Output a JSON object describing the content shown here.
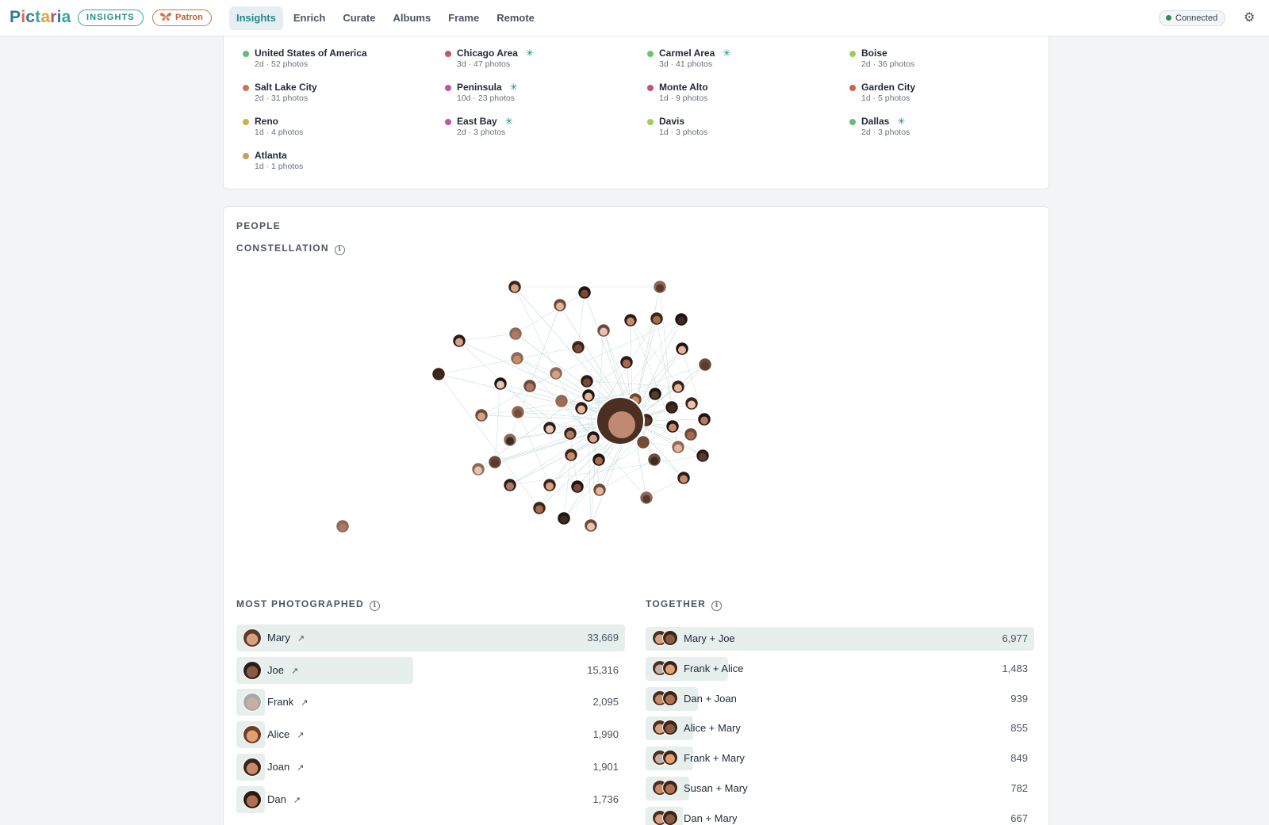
{
  "app": {
    "logo_text": "Pictaria",
    "mode_badge": "INSIGHTS",
    "patron_badge": "Patron",
    "nav": [
      "Insights",
      "Enrich",
      "Curate",
      "Albums",
      "Frame",
      "Remote"
    ],
    "active_nav": "Insights",
    "status": "Connected",
    "colors": {
      "accent": "#1f8a84",
      "patron": "#b8613a",
      "bar": "#e6efec"
    }
  },
  "places": [
    {
      "name": "United States of America",
      "meta": "2d · 52 photos",
      "color": "#5fbf6a",
      "starred": false
    },
    {
      "name": "Chicago Area",
      "meta": "3d · 47 photos",
      "color": "#c4565e",
      "starred": true
    },
    {
      "name": "Carmel Area",
      "meta": "3d · 41 photos",
      "color": "#6cc46b",
      "starred": true
    },
    {
      "name": "Boise",
      "meta": "2d · 36 photos",
      "color": "#9bcf5c",
      "starred": false
    },
    {
      "name": "Salt Lake City",
      "meta": "2d · 31 photos",
      "color": "#c97358",
      "starred": false
    },
    {
      "name": "Peninsula",
      "meta": "10d · 23 photos",
      "color": "#c0579e",
      "starred": true
    },
    {
      "name": "Monte Alto",
      "meta": "1d · 9 photos",
      "color": "#c4527a",
      "starred": false
    },
    {
      "name": "Garden City",
      "meta": "1d · 5 photos",
      "color": "#c9664a",
      "starred": false
    },
    {
      "name": "Reno",
      "meta": "1d · 4 photos",
      "color": "#c9b24a",
      "starred": false
    },
    {
      "name": "East Bay",
      "meta": "2d · 3 photos",
      "color": "#c055a8",
      "starred": true
    },
    {
      "name": "Davis",
      "meta": "1d · 3 photos",
      "color": "#9ccf5e",
      "starred": false
    },
    {
      "name": "Dallas",
      "meta": "2d · 3 photos",
      "color": "#62c270",
      "starred": true
    },
    {
      "name": "Atlanta",
      "meta": "1d · 1 photos",
      "color": "#c9a05a",
      "starred": false
    }
  ],
  "people": {
    "section_label": "PEOPLE",
    "constellation_label": "CONSTELLATION",
    "most_label": "MOST PHOTOGRAPHED",
    "together_label": "TOGETHER",
    "link_glyph": "↗",
    "most_photographed": [
      {
        "name": "Mary",
        "count": "33,669",
        "value": 33669
      },
      {
        "name": "Joe",
        "count": "15,316",
        "value": 15316
      },
      {
        "name": "Frank",
        "count": "2,095",
        "value": 2095
      },
      {
        "name": "Alice",
        "count": "1,990",
        "value": 1990
      },
      {
        "name": "Joan",
        "count": "1,901",
        "value": 1901
      },
      {
        "name": "Dan",
        "count": "1,736",
        "value": 1736
      }
    ],
    "together": [
      {
        "name": "Mary + Joe",
        "count": "6,977",
        "value": 6977
      },
      {
        "name": "Frank + Alice",
        "count": "1,483",
        "value": 1483
      },
      {
        "name": "Dan + Joan",
        "count": "939",
        "value": 939
      },
      {
        "name": "Alice + Mary",
        "count": "855",
        "value": 855
      },
      {
        "name": "Frank + Mary",
        "count": "849",
        "value": 849
      },
      {
        "name": "Susan + Mary",
        "count": "782",
        "value": 782
      },
      {
        "name": "Dan + Mary",
        "count": "667",
        "value": 667
      }
    ]
  }
}
